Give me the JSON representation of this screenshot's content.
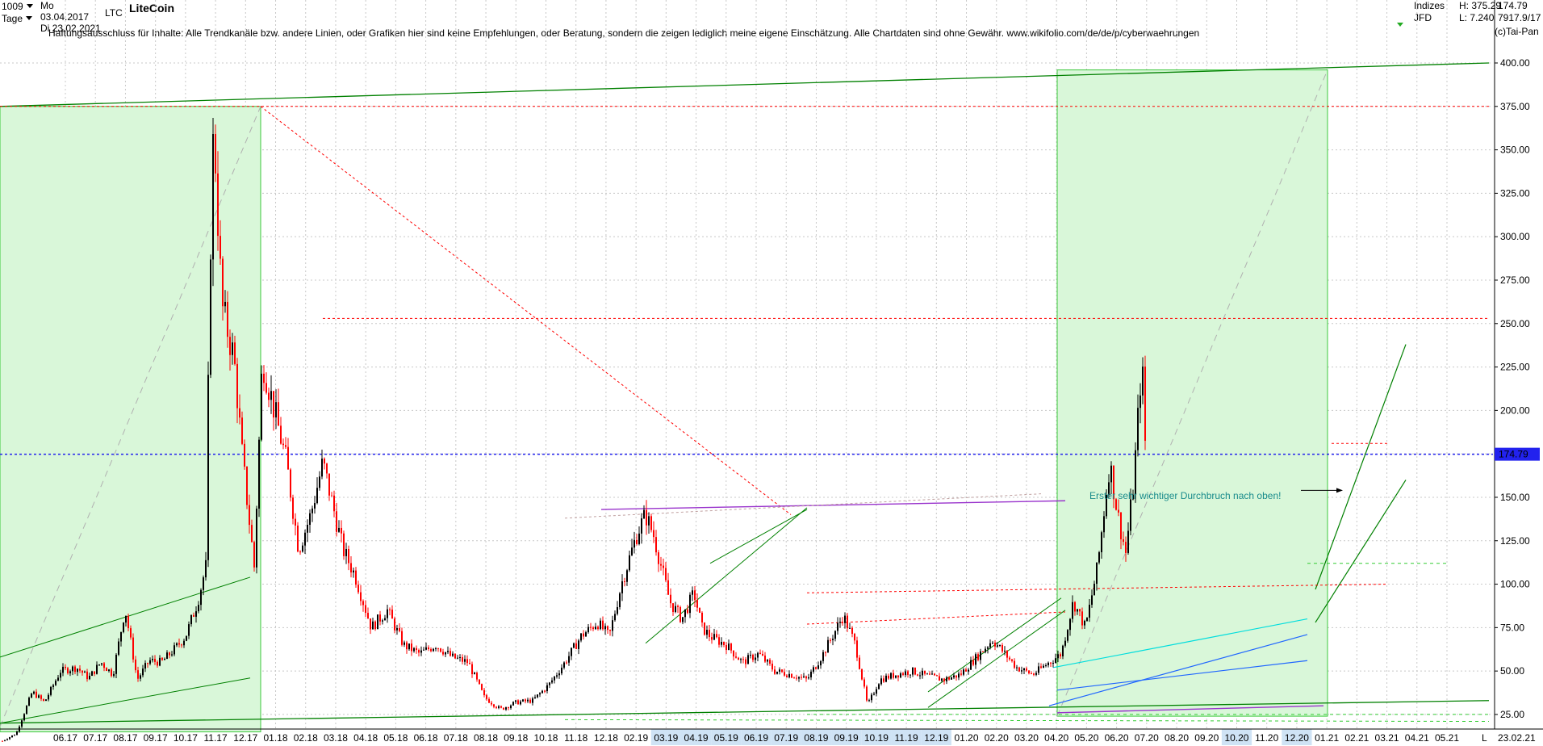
{
  "header": {
    "count_select": "1009",
    "period_select": "Tage",
    "date_from": "Mo 03.04.2017",
    "date_to": "Di 23.02.2021",
    "symbol": "LTC",
    "title": "LiteCoin",
    "disclaimer": "Haftungsausschluss für Inhalte: Alle Trendkanäle bzw. andere Linien, oder Grafiken hier sind keine Empfehlungen, oder Beratung, sondern die zeigen lediglich meine eigene Einschätzung. Alle Chartdaten sind ohne Gewähr.  www.wikifolio.com/de/de/p/cyberwaehrungen",
    "indizes": "Indizes",
    "jfd": "JFD",
    "high": "H: 375.29",
    "low": "L: 7.240",
    "last": "174.79",
    "volume": "7917.9/17",
    "brand": "(c)Tai-Pan"
  },
  "colors": {
    "up_candle": "#000000",
    "down_candle": "#ff0000",
    "channel": "#008000",
    "resistance": "#ff0000",
    "support": "#0000ff",
    "highlight": "#d9f7d9",
    "current_price": "#2222ee"
  },
  "chart_data": {
    "type": "candlestick",
    "title": "LiteCoin",
    "series_name": "LTC",
    "ylim": [
      18,
      400
    ],
    "y_ticks": [
      "25.00",
      "50.00",
      "75.00",
      "100.00",
      "125.00",
      "150.00",
      "175.00",
      "200.00",
      "225.00",
      "250.00",
      "275.00",
      "300.00",
      "325.00",
      "350.00",
      "375.00",
      "400.00"
    ],
    "x_ticks": [
      "06.17",
      "07.17",
      "08.17",
      "09.17",
      "10.17",
      "11.17",
      "12.17",
      "01.18",
      "02.18",
      "03.18",
      "04.18",
      "05.18",
      "06.18",
      "07.18",
      "08.18",
      "09.18",
      "10.18",
      "11.18",
      "12.18",
      "02.19",
      "03.19",
      "04.19",
      "05.19",
      "06.19",
      "07.19",
      "08.19",
      "09.19",
      "10.19",
      "11.19",
      "12.19",
      "01.20",
      "02.20",
      "03.20",
      "04.20",
      "05.20",
      "06.20",
      "07.20",
      "08.20",
      "09.20",
      "10.20",
      "11.20",
      "12.20",
      "01.21",
      "02.21",
      "03.21",
      "04.21",
      "05.21"
    ],
    "x_end_label": "23.02.21",
    "x_axis_unit": "L",
    "grid": true,
    "current_price": 174.79,
    "current_price_label": "174.79",
    "price_path": [
      [
        0,
        9
      ],
      [
        20,
        14
      ],
      [
        40,
        38
      ],
      [
        55,
        32
      ],
      [
        75,
        50
      ],
      [
        95,
        52
      ],
      [
        110,
        46
      ],
      [
        125,
        55
      ],
      [
        140,
        48
      ],
      [
        155,
        86
      ],
      [
        170,
        45
      ],
      [
        185,
        56
      ],
      [
        200,
        55
      ],
      [
        215,
        62
      ],
      [
        230,
        70
      ],
      [
        245,
        90
      ],
      [
        255,
        110
      ],
      [
        260,
        280
      ],
      [
        265,
        370
      ],
      [
        268,
        330
      ],
      [
        275,
        260
      ],
      [
        290,
        230
      ],
      [
        300,
        175
      ],
      [
        315,
        110
      ],
      [
        325,
        230
      ],
      [
        340,
        200
      ],
      [
        355,
        170
      ],
      [
        370,
        120
      ],
      [
        385,
        140
      ],
      [
        400,
        170
      ],
      [
        410,
        150
      ],
      [
        425,
        120
      ],
      [
        440,
        105
      ],
      [
        460,
        75
      ],
      [
        480,
        85
      ],
      [
        500,
        65
      ],
      [
        520,
        60
      ],
      [
        540,
        65
      ],
      [
        560,
        58
      ],
      [
        580,
        55
      ],
      [
        600,
        35
      ],
      [
        620,
        28
      ],
      [
        640,
        32
      ],
      [
        660,
        33
      ],
      [
        680,
        42
      ],
      [
        700,
        55
      ],
      [
        720,
        70
      ],
      [
        740,
        78
      ],
      [
        755,
        70
      ],
      [
        770,
        100
      ],
      [
        790,
        130
      ],
      [
        800,
        140
      ],
      [
        810,
        128
      ],
      [
        830,
        90
      ],
      [
        845,
        80
      ],
      [
        860,
        95
      ],
      [
        870,
        75
      ],
      [
        880,
        70
      ],
      [
        900,
        65
      ],
      [
        920,
        55
      ],
      [
        940,
        60
      ],
      [
        960,
        50
      ],
      [
        980,
        48
      ],
      [
        1000,
        45
      ],
      [
        1020,
        60
      ],
      [
        1045,
        82
      ],
      [
        1060,
        65
      ],
      [
        1075,
        30
      ],
      [
        1090,
        45
      ],
      [
        1110,
        48
      ],
      [
        1130,
        50
      ],
      [
        1150,
        47
      ],
      [
        1170,
        45
      ],
      [
        1190,
        48
      ],
      [
        1210,
        58
      ],
      [
        1230,
        68
      ],
      [
        1245,
        60
      ],
      [
        1260,
        52
      ],
      [
        1280,
        48
      ],
      [
        1300,
        55
      ],
      [
        1315,
        60
      ],
      [
        1330,
        90
      ],
      [
        1345,
        75
      ],
      [
        1360,
        110
      ],
      [
        1375,
        170
      ],
      [
        1385,
        140
      ],
      [
        1395,
        118
      ],
      [
        1405,
        160
      ],
      [
        1415,
        230
      ],
      [
        1420,
        170
      ]
    ],
    "annotation": "Erster sehr wichtiger Durchbruch nach oben!"
  }
}
